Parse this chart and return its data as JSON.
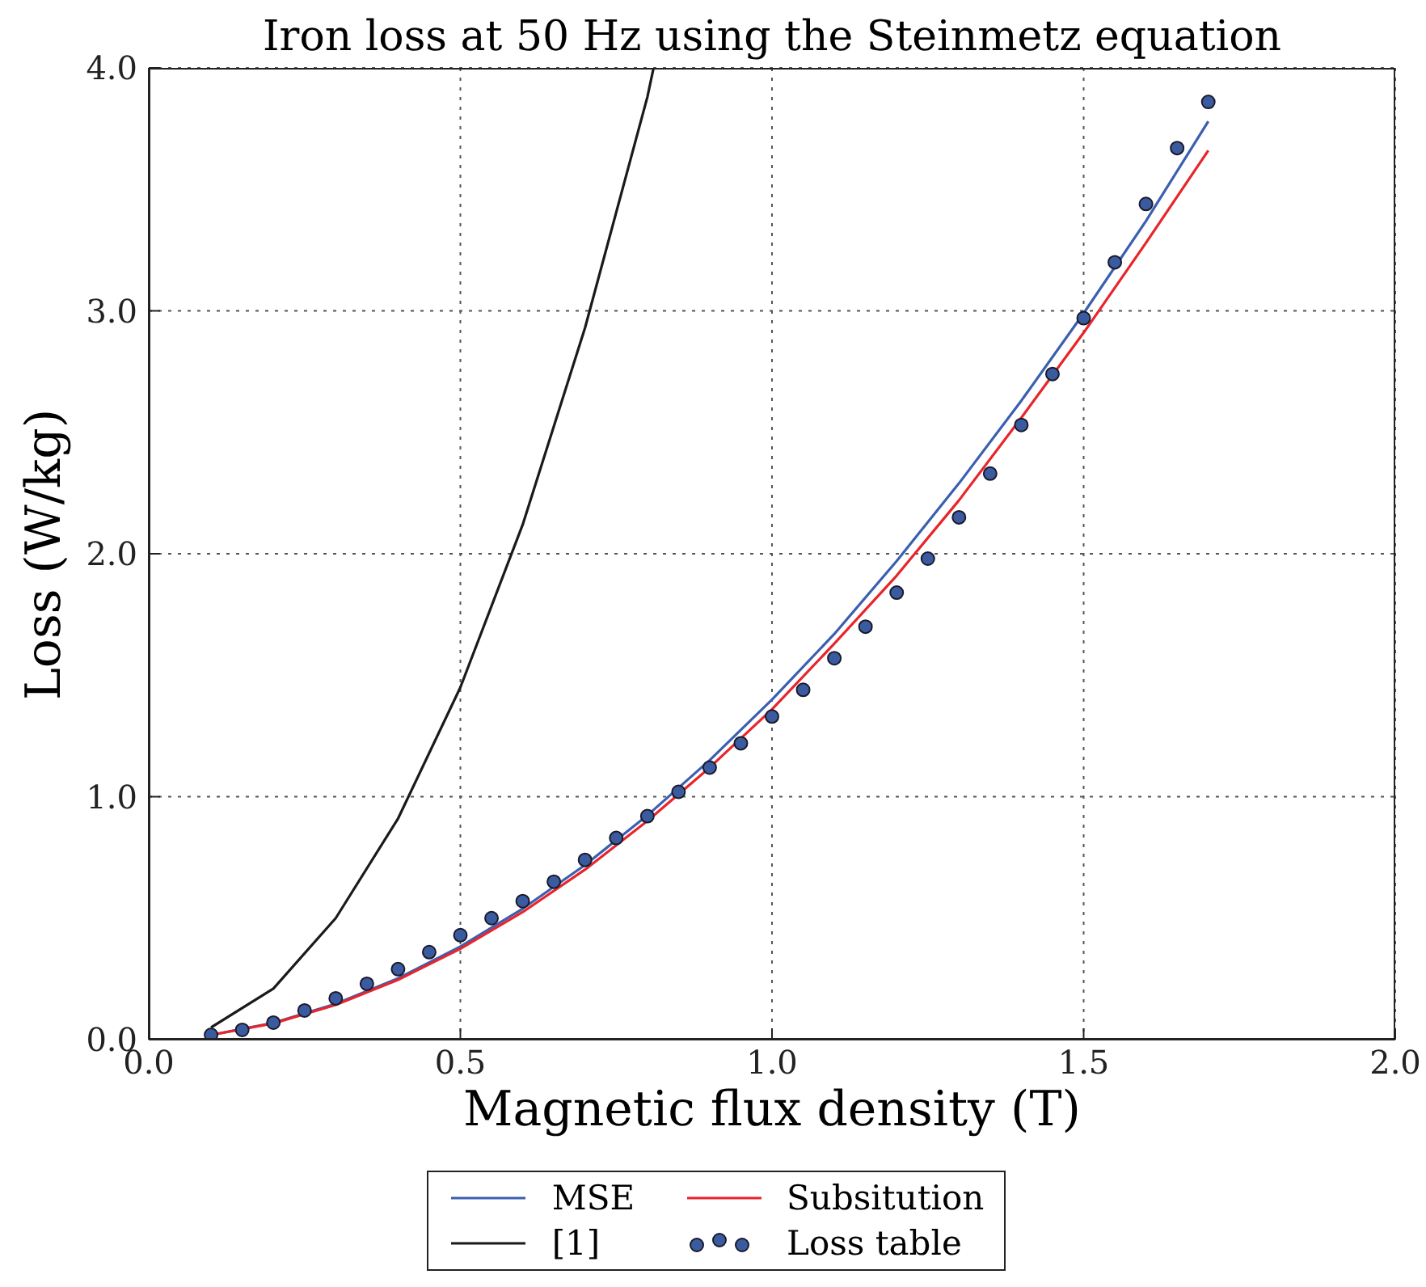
{
  "chart_data": {
    "type": "line",
    "title": "Iron loss at 50 Hz using the Steinmetz equation",
    "xlabel": "Magnetic flux density (T)",
    "ylabel": "Loss (W/kg)",
    "xlim": [
      0,
      2
    ],
    "xticks": [
      {
        "value": 0,
        "label": "0.0"
      },
      {
        "value": 0.5,
        "label": "0.5"
      },
      {
        "value": 1,
        "label": "1.0"
      },
      {
        "value": 1.5,
        "label": "1.5"
      },
      {
        "value": 2,
        "label": "2.0"
      }
    ],
    "ylim": [
      0,
      4
    ],
    "yticks": [
      {
        "value": 0,
        "label": "0.0"
      },
      {
        "value": 1,
        "label": "1.0"
      },
      {
        "value": 2,
        "label": "2.0"
      },
      {
        "value": 3,
        "label": "3.0"
      },
      {
        "value": 4,
        "label": "4.0"
      }
    ],
    "grid": true,
    "legend": "bottom",
    "series": [
      {
        "name": "MSE",
        "type": "line",
        "color": "#3b5fb0",
        "x": [
          0.1,
          0.2,
          0.3,
          0.4,
          0.5,
          0.6,
          0.7,
          0.8,
          0.9,
          1.0,
          1.1,
          1.2,
          1.3,
          1.4,
          1.5,
          1.6,
          1.7
        ],
        "values": [
          0.019,
          0.069,
          0.147,
          0.252,
          0.383,
          0.539,
          0.719,
          0.923,
          1.15,
          1.4,
          1.67,
          1.97,
          2.29,
          2.63,
          2.99,
          3.37,
          3.78
        ]
      },
      {
        "name": "Subsitution",
        "type": "line",
        "color": "#e8252a",
        "x": [
          0.1,
          0.2,
          0.3,
          0.4,
          0.5,
          0.6,
          0.7,
          0.8,
          0.9,
          1.0,
          1.1,
          1.2,
          1.3,
          1.4,
          1.5,
          1.6,
          1.7
        ],
        "values": [
          0.019,
          0.067,
          0.143,
          0.246,
          0.374,
          0.525,
          0.7,
          0.9,
          1.12,
          1.36,
          1.63,
          1.91,
          2.22,
          2.56,
          2.91,
          3.28,
          3.66
        ]
      },
      {
        "name": "[1]",
        "type": "line",
        "color": "#1a1a1a",
        "x": [
          0.1,
          0.2,
          0.3,
          0.4,
          0.5,
          0.6,
          0.7,
          0.8,
          0.81
        ],
        "values": [
          0.05,
          0.21,
          0.5,
          0.91,
          1.45,
          2.12,
          2.93,
          3.88,
          4.0
        ]
      },
      {
        "name": "Loss table",
        "type": "scatter",
        "color": "#3a5ba0",
        "marker": "circle",
        "x": [
          0.1,
          0.15,
          0.2,
          0.25,
          0.3,
          0.35,
          0.4,
          0.45,
          0.5,
          0.55,
          0.6,
          0.65,
          0.7,
          0.75,
          0.8,
          0.85,
          0.9,
          0.95,
          1.0,
          1.05,
          1.1,
          1.15,
          1.2,
          1.25,
          1.3,
          1.35,
          1.4,
          1.45,
          1.5,
          1.55,
          1.6,
          1.65,
          1.7
        ],
        "values": [
          0.02,
          0.04,
          0.07,
          0.12,
          0.17,
          0.23,
          0.29,
          0.36,
          0.43,
          0.5,
          0.57,
          0.65,
          0.74,
          0.83,
          0.92,
          1.02,
          1.12,
          1.22,
          1.33,
          1.44,
          1.57,
          1.7,
          1.84,
          1.98,
          2.15,
          2.33,
          2.53,
          2.74,
          2.97,
          3.2,
          3.44,
          3.67,
          3.86
        ]
      }
    ]
  }
}
